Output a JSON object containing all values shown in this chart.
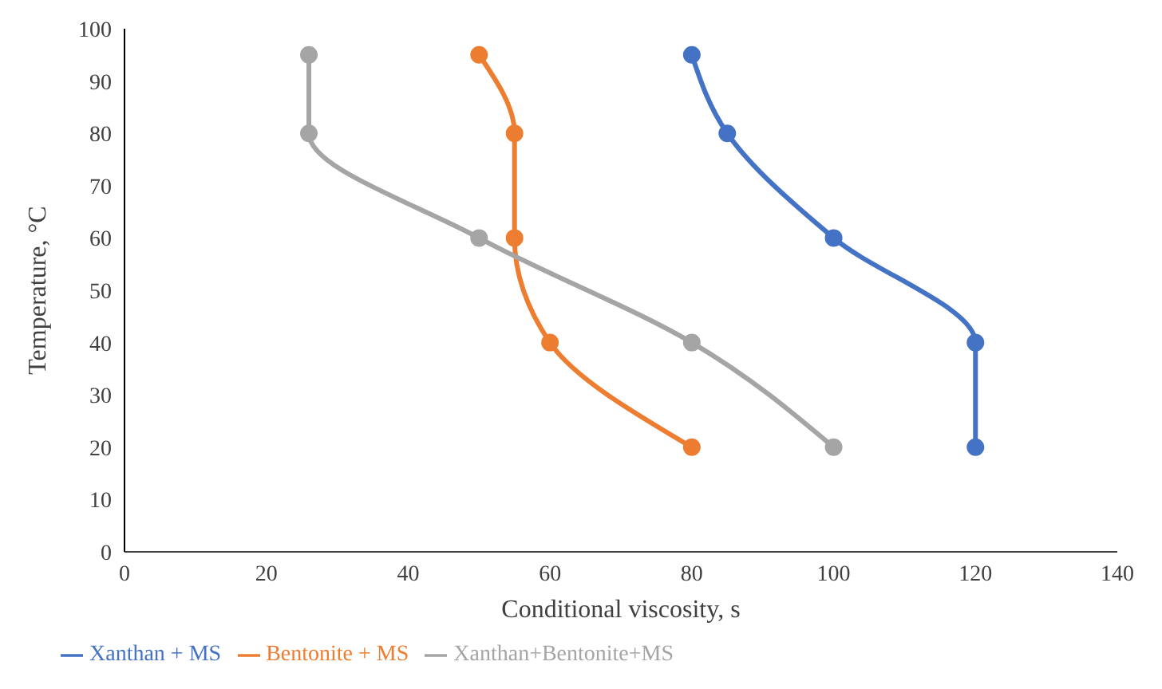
{
  "chart_data": {
    "type": "line",
    "xlabel": "Conditional viscosity, s",
    "ylabel": "Temperature, °C",
    "xlim": [
      0,
      140
    ],
    "xticks": [
      0,
      20,
      40,
      60,
      80,
      100,
      120,
      140
    ],
    "ylim": [
      0,
      100
    ],
    "yticks": [
      0,
      10,
      20,
      30,
      40,
      50,
      60,
      70,
      80,
      90,
      100
    ],
    "grid": false,
    "legend": "bottom",
    "marker": "circle",
    "line_style": "solid",
    "series": [
      {
        "name": "Xanthan + MS",
        "color": "#4472c4",
        "x": [
          80,
          85,
          100,
          120,
          120
        ],
        "values": [
          95,
          80,
          60,
          40,
          20
        ]
      },
      {
        "name": "Bentonite + MS",
        "color": "#ed7d31",
        "x": [
          50,
          55,
          55,
          60,
          80
        ],
        "values": [
          95,
          80,
          60,
          40,
          20
        ]
      },
      {
        "name": "Xanthan+Bentonite+MS",
        "color": "#a5a5a5",
        "x": [
          26,
          26,
          50,
          80,
          100
        ],
        "values": [
          95,
          80,
          60,
          40,
          20
        ]
      }
    ]
  }
}
